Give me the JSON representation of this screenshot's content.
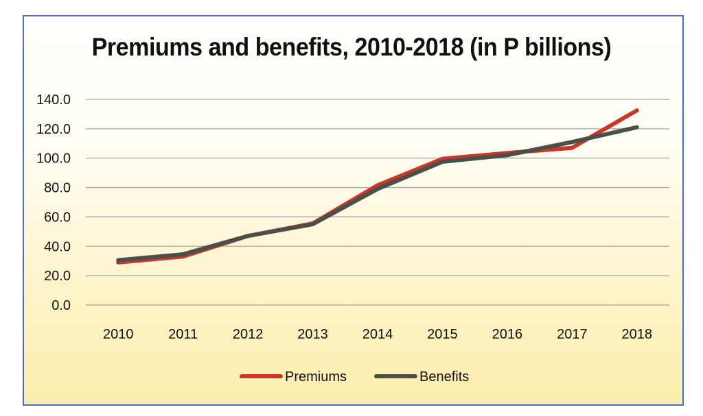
{
  "chart_data": {
    "type": "line",
    "title": "Premiums and benefits, 2010-2018 (in P billions)",
    "categories": [
      "2010",
      "2011",
      "2012",
      "2013",
      "2014",
      "2015",
      "2016",
      "2017",
      "2018"
    ],
    "y_ticks": [
      "0.0",
      "20.0",
      "40.0",
      "60.0",
      "80.0",
      "100.0",
      "120.0",
      "140.0"
    ],
    "ylim": [
      0,
      140
    ],
    "grid": true,
    "legend_position": "bottom",
    "series": [
      {
        "name": "Premiums",
        "color": "#c9372b",
        "values": [
          29.0,
          33.0,
          47.0,
          55.5,
          81.5,
          99.5,
          103.5,
          107.0,
          132.5
        ]
      },
      {
        "name": "Benefits",
        "color": "#4b4f4a",
        "values": [
          30.5,
          34.5,
          47.0,
          55.0,
          79.0,
          97.5,
          102.0,
          111.0,
          121.0
        ]
      }
    ]
  }
}
